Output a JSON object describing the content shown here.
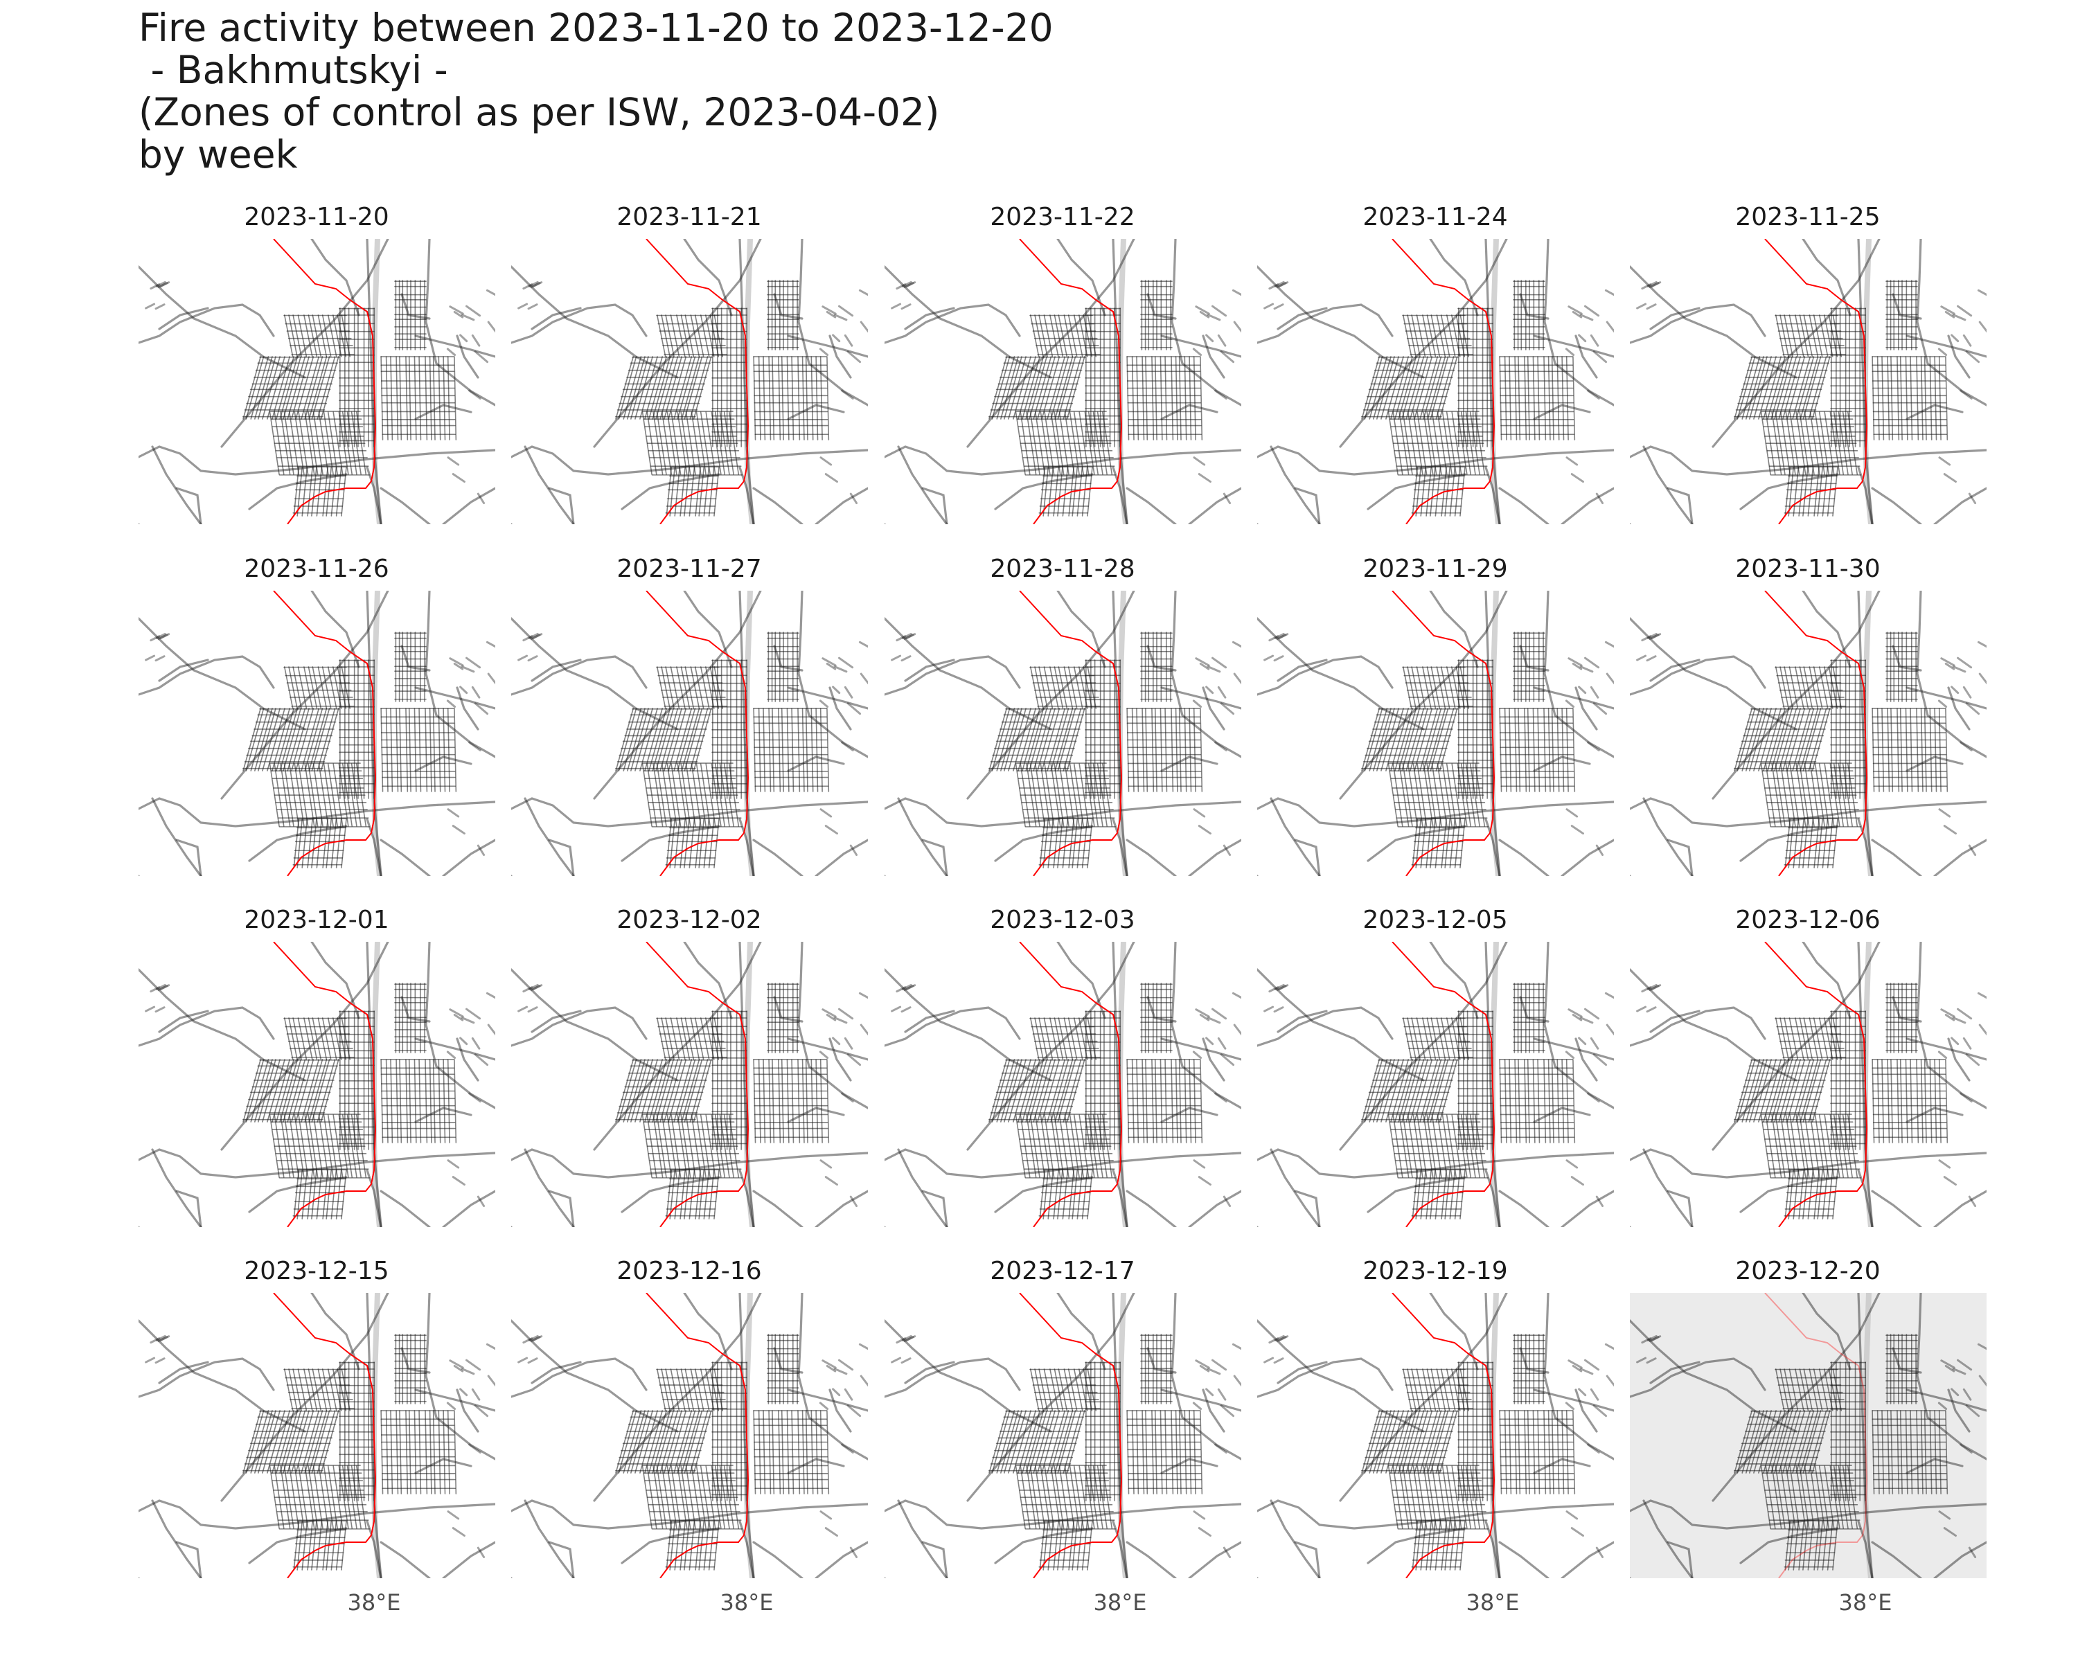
{
  "title_lines": [
    "Fire activity between 2023-11-20 to 2023-12-20",
    " - Bakhmutskyi -",
    "(Zones of control as per ISW, 2023-04-02)",
    "by week"
  ],
  "chart_data": {
    "type": "map-facets",
    "title": "Fire activity between 2023-11-20 to 2023-12-20 - Bakhmutskyi - (Zones of control as per ISW, 2023-04-02) by week",
    "region": "Bakhmutskyi",
    "date_range": [
      "2023-11-20",
      "2023-12-20"
    ],
    "control_source": "ISW, 2023-04-02",
    "facet_by": "week",
    "layout": {
      "rows": 4,
      "cols": 5
    },
    "facets": [
      {
        "label": "2023-11-20",
        "highlighted": false
      },
      {
        "label": "2023-11-21",
        "highlighted": false
      },
      {
        "label": "2023-11-22",
        "highlighted": false
      },
      {
        "label": "2023-11-24",
        "highlighted": false
      },
      {
        "label": "2023-11-25",
        "highlighted": false
      },
      {
        "label": "2023-11-26",
        "highlighted": false
      },
      {
        "label": "2023-11-27",
        "highlighted": false
      },
      {
        "label": "2023-11-28",
        "highlighted": false
      },
      {
        "label": "2023-11-29",
        "highlighted": false
      },
      {
        "label": "2023-11-30",
        "highlighted": false
      },
      {
        "label": "2023-12-01",
        "highlighted": false
      },
      {
        "label": "2023-12-02",
        "highlighted": false
      },
      {
        "label": "2023-12-03",
        "highlighted": false
      },
      {
        "label": "2023-12-05",
        "highlighted": false
      },
      {
        "label": "2023-12-06",
        "highlighted": false
      },
      {
        "label": "2023-12-15",
        "highlighted": false
      },
      {
        "label": "2023-12-16",
        "highlighted": false
      },
      {
        "label": "2023-12-17",
        "highlighted": false
      },
      {
        "label": "2023-12-19",
        "highlighted": false
      },
      {
        "label": "2023-12-20",
        "highlighted": true
      }
    ],
    "x_tick_label": "38°E",
    "colors": {
      "front_line": "#ff0000",
      "roads": "#1a1a1a",
      "river": "#c8c8c8",
      "highlight_panel": "#ebebeb"
    }
  }
}
